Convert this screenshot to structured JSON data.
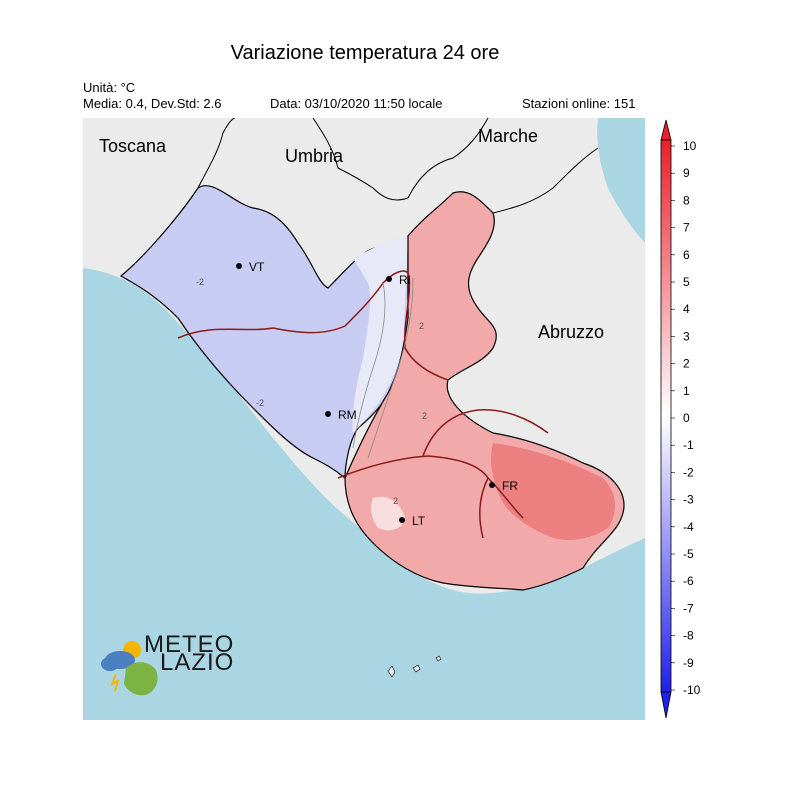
{
  "header": {
    "title": "Variazione temperatura 24 ore",
    "unit": "Unità: °C",
    "stats": "Media: 0.4, Dev.Std: 2.6",
    "datetime": "Data: 03/10/2020 11:50 locale",
    "stations": "Stazioni online: 151"
  },
  "map": {
    "regions": [
      "Toscana",
      "Umbria",
      "Marche",
      "Abruzzo"
    ],
    "cities": [
      "VT",
      "RI",
      "RM",
      "FR",
      "LT"
    ],
    "isoline_labels": [
      "-2",
      "-2",
      "2",
      "2",
      "2"
    ]
  },
  "colorbar": {
    "ticks": [
      "10",
      "9",
      "8",
      "7",
      "6",
      "5",
      "4",
      "3",
      "2",
      "1",
      "0",
      "-1",
      "-2",
      "-3",
      "-4",
      "-5",
      "-6",
      "-7",
      "-8",
      "-9",
      "-10"
    ],
    "min_value": -10,
    "max_value": 10,
    "colors": {
      "negative_strong": "#2020e8",
      "negative_weak": "#eef0fa",
      "positive_weak": "#fbeeee",
      "positive_strong": "#e8202a"
    }
  },
  "colors": {
    "sea": "#aad6e3",
    "land_outside": "#ebebeb",
    "border_provinces": "#8b1a1a",
    "border_regions": "#000000"
  },
  "logo": {
    "line1": "METEO",
    "line2": "LAZIO"
  }
}
